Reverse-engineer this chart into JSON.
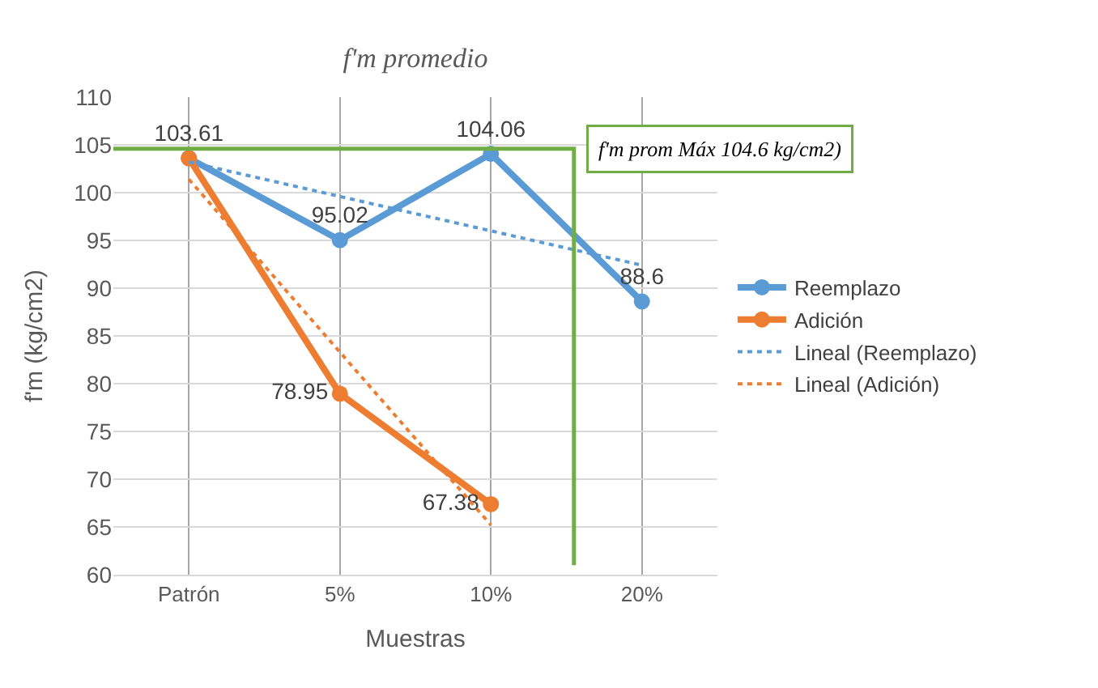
{
  "chart_data": {
    "type": "line",
    "title": "f'm promedio",
    "xlabel": "Muestras",
    "ylabel": "f'm (kg/cm2)",
    "categories": [
      "Patrón",
      "5%",
      "10%",
      "20%"
    ],
    "series": [
      {
        "name": "Reemplazo",
        "color": "#5b9bd5",
        "values": [
          103.61,
          95.02,
          104.06,
          88.6
        ],
        "marker": "circle",
        "line_style": "solid",
        "value_labels": [
          "103.61",
          "95.02",
          "104.06",
          "88.6"
        ]
      },
      {
        "name": "Adición",
        "color": "#ed7d31",
        "values": [
          103.6,
          78.95,
          67.38,
          null
        ],
        "marker": "circle",
        "line_style": "solid",
        "value_labels": [
          null,
          "78.95",
          "67.38",
          null
        ]
      },
      {
        "name": "Lineal (Reemplazo)",
        "color": "#5b9bd5",
        "x": [
          "Patrón",
          "20%"
        ],
        "values": [
          103.2,
          92.4
        ],
        "marker": "none",
        "line_style": "dotted"
      },
      {
        "name": "Lineal (Adición)",
        "color": "#ed7d31",
        "x": [
          "Patrón",
          "10%"
        ],
        "values": [
          101.4,
          65.2
        ],
        "marker": "none",
        "line_style": "dotted"
      }
    ],
    "ylim": [
      60,
      110
    ],
    "yticks": [
      60,
      65,
      70,
      75,
      80,
      85,
      90,
      95,
      100,
      105,
      110
    ],
    "ref_lines": [
      {
        "axis": "y",
        "value": 104.6,
        "label": "f'm prom Máx 104.6 kg/cm2)",
        "color": "#70ad47"
      }
    ],
    "grid": true,
    "legend": "right"
  }
}
